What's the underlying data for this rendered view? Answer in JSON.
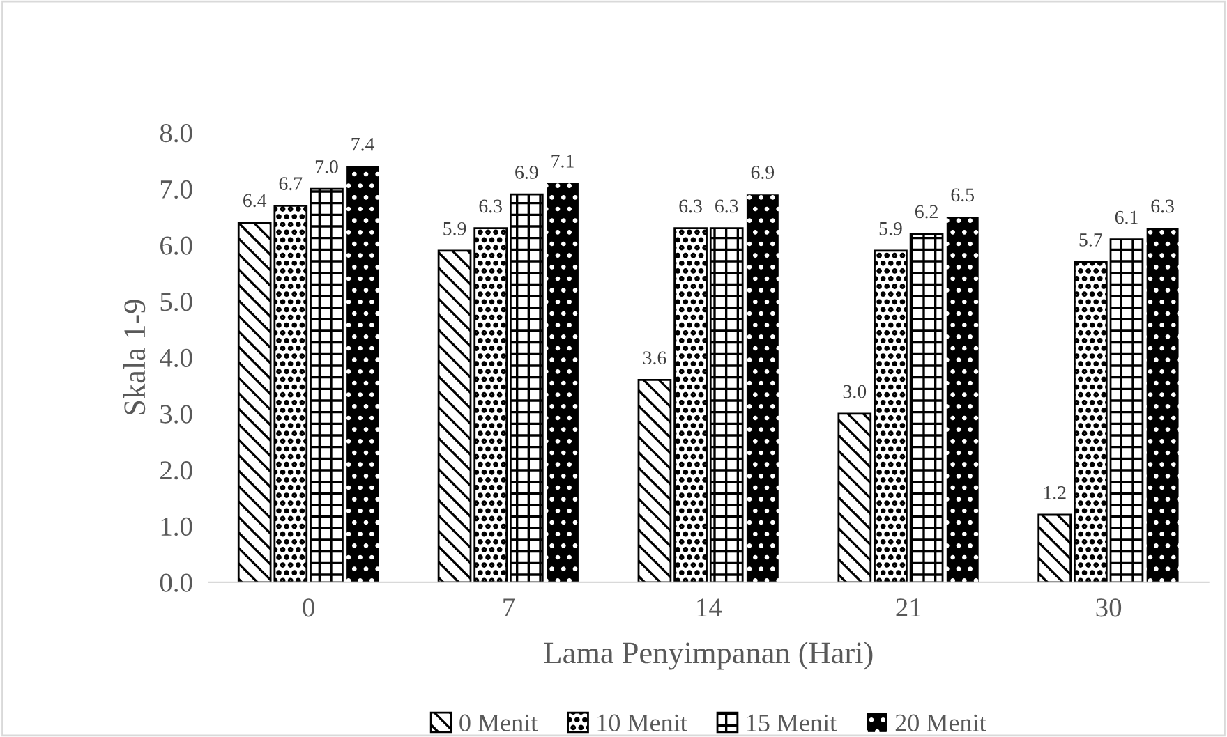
{
  "chart_data": {
    "type": "bar",
    "xlabel": "Lama Penyimpanan (Hari)",
    "ylabel": "Skala 1-9",
    "categories": [
      "0",
      "7",
      "14",
      "21",
      "30"
    ],
    "series": [
      {
        "name": "0 Menit",
        "color": "#000000",
        "values": [
          6.4,
          5.9,
          3.6,
          3.0,
          1.2
        ],
        "value_labels": [
          "6.4",
          "5.9",
          "3.6",
          "3.0",
          "1.2"
        ]
      },
      {
        "name": "10 Menit",
        "color": "#000000",
        "values": [
          6.7,
          6.3,
          6.3,
          5.9,
          5.7
        ],
        "value_labels": [
          "6.7",
          "6.3",
          "6.3",
          "5.9",
          "5.7"
        ]
      },
      {
        "name": "15 Menit",
        "color": "#000000",
        "values": [
          7.0,
          6.9,
          6.3,
          6.2,
          6.1
        ],
        "value_labels": [
          "7.0",
          "6.9",
          "6.3",
          "6.2",
          "6.1"
        ]
      },
      {
        "name": "20 Menit",
        "color": "#000000",
        "values": [
          7.4,
          7.1,
          6.9,
          6.5,
          6.3
        ],
        "value_labels": [
          "7.4",
          "7.1",
          "6.9",
          "6.5",
          "6.3"
        ]
      }
    ],
    "ylim": [
      0,
      8
    ],
    "yticks": [
      {
        "value": 0,
        "label": "0.0"
      },
      {
        "value": 1,
        "label": "1.0"
      },
      {
        "value": 2,
        "label": "2.0"
      },
      {
        "value": 3,
        "label": "3.0"
      },
      {
        "value": 4,
        "label": "4.0"
      },
      {
        "value": 5,
        "label": "5.0"
      },
      {
        "value": 6,
        "label": "6.0"
      },
      {
        "value": 7,
        "label": "7.0"
      },
      {
        "value": 8,
        "label": "8.0"
      }
    ],
    "legend": "bottom"
  }
}
